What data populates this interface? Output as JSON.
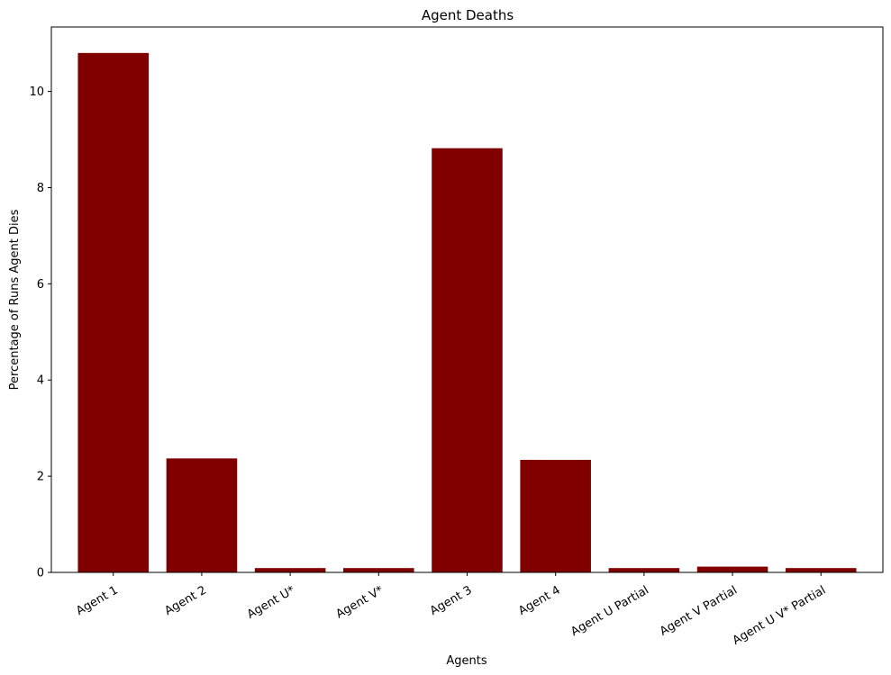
{
  "chart_data": {
    "type": "bar",
    "title": "Agent Deaths",
    "xlabel": "Agents",
    "ylabel": "Percentage of Runs Agent Dies",
    "categories": [
      "Agent 1",
      "Agent 2",
      "Agent U*",
      "Agent V*",
      "Agent 3",
      "Agent 4",
      "Agent U Partial",
      "Agent V Partial",
      "Agent U V* Partial"
    ],
    "values": [
      10.8,
      2.37,
      0.09,
      0.09,
      8.82,
      2.34,
      0.09,
      0.12,
      0.09
    ],
    "yticks": [
      0,
      2,
      4,
      6,
      8,
      10
    ],
    "ylim": [
      0,
      11.34
    ],
    "grid": false,
    "bar_color": "#800000"
  }
}
